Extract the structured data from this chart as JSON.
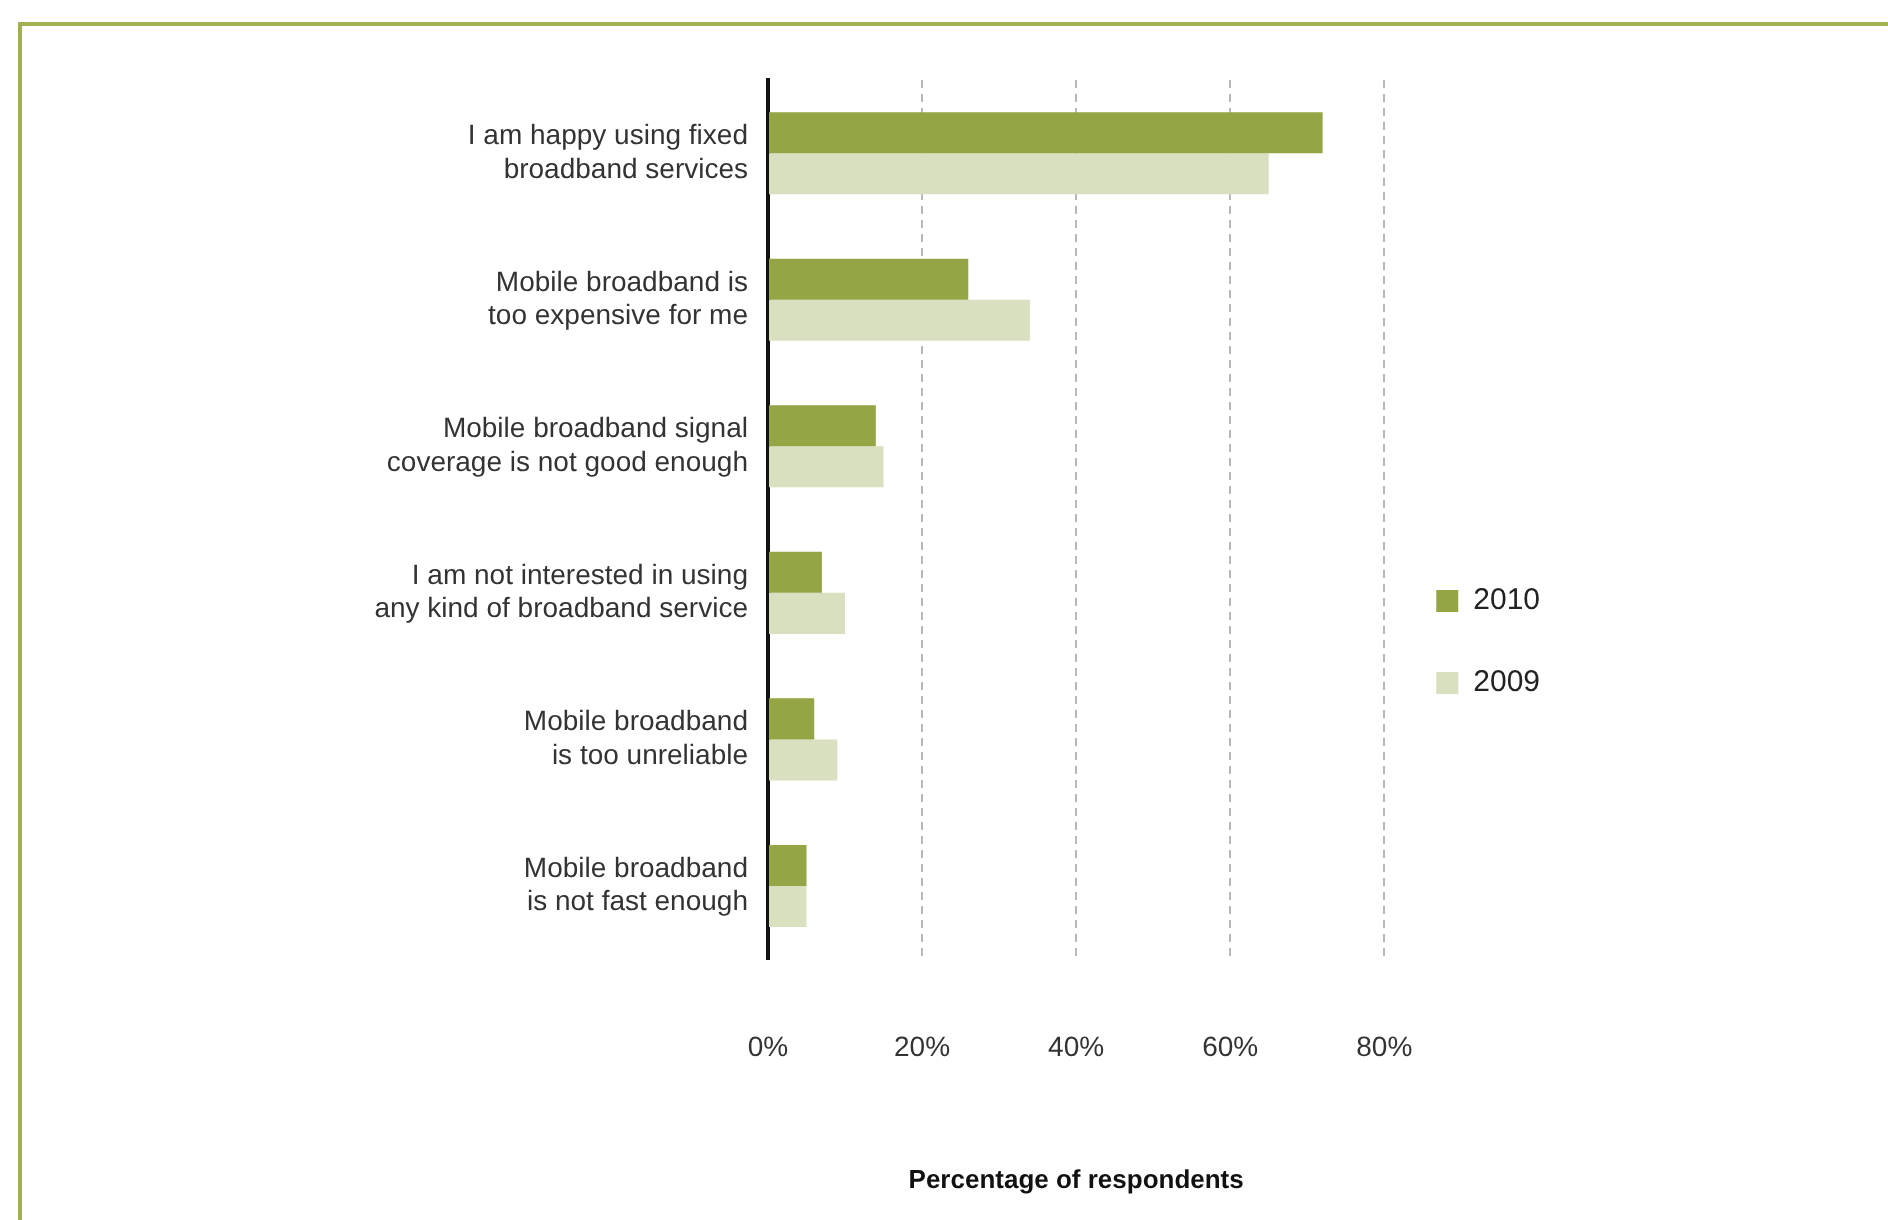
{
  "chart_data": {
    "type": "bar",
    "orientation": "horizontal",
    "xlabel": "Percentage of respondents",
    "categories": [
      "I am happy using fixed broadband services",
      "Mobile broadband is too expensive for me",
      "Mobile broadband signal coverage is not good enough",
      "I am not interested in using any kind of broadband service",
      "Mobile broadband is too unreliable",
      "Mobile broadband is not fast enough"
    ],
    "series": [
      {
        "name": "2010",
        "color": "#94a545",
        "values": [
          72,
          26,
          14,
          7,
          6,
          5
        ]
      },
      {
        "name": "2009",
        "color": "#d9e0bf",
        "values": [
          65,
          34,
          15,
          10,
          9,
          5
        ]
      }
    ],
    "xlim": [
      0,
      80
    ],
    "xticks": [
      {
        "value": 0,
        "label": "0%"
      },
      {
        "value": 20,
        "label": "20%"
      },
      {
        "value": 40,
        "label": "40%"
      },
      {
        "value": 60,
        "label": "60%"
      },
      {
        "value": 80,
        "label": "80%"
      }
    ],
    "grid": "x",
    "legend": "right"
  }
}
